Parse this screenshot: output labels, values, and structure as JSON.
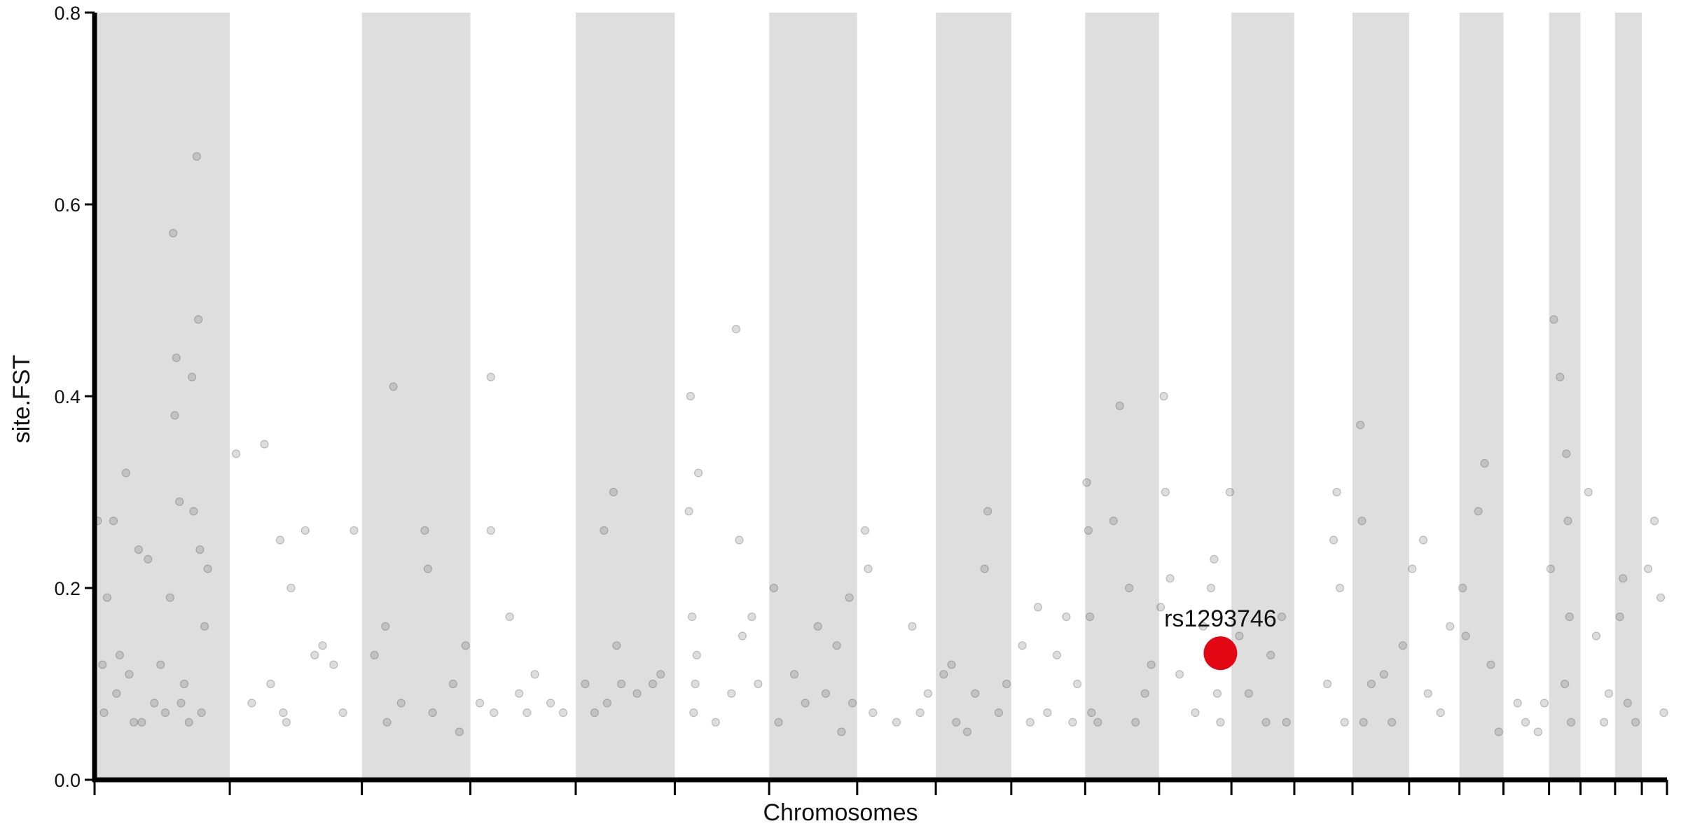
{
  "chart_data": {
    "type": "scatter",
    "x_label": "Chromosomes",
    "y_label": "site.FST",
    "xlim": [
      0,
      1000
    ],
    "ylim": [
      0,
      0.8
    ],
    "xticks": [
      0,
      86,
      170,
      239,
      306,
      369,
      429,
      485,
      535,
      583,
      630,
      677,
      723,
      763,
      800,
      836,
      868,
      896,
      925,
      945,
      967,
      984,
      1000
    ],
    "yticks": [
      {
        "value": 0,
        "label": "0.0"
      },
      0.2,
      0.4,
      0.6,
      0.8
    ],
    "band_color": "#dedede",
    "color": "#444444",
    "x": [
      2,
      5,
      6,
      8,
      12,
      14,
      20,
      22,
      28,
      30,
      34,
      38,
      42,
      50,
      51,
      52,
      54,
      55,
      57,
      62,
      63,
      65,
      66,
      67,
      68,
      70,
      72,
      60,
      45,
      48,
      25,
      16,
      90,
      100,
      108,
      118,
      120,
      122,
      125,
      134,
      140,
      145,
      152,
      158,
      165,
      112,
      178,
      185,
      186,
      190,
      195,
      210,
      212,
      215,
      228,
      236,
      232,
      252,
      252,
      254,
      264,
      270,
      275,
      280,
      290,
      298,
      245,
      312,
      318,
      324,
      326,
      330,
      332,
      335,
      345,
      355,
      360,
      378,
      379,
      380,
      381,
      382,
      384,
      383,
      395,
      405,
      408,
      410,
      412,
      418,
      422,
      432,
      435,
      445,
      452,
      460,
      465,
      472,
      475,
      480,
      482,
      490,
      492,
      495,
      510,
      520,
      525,
      530,
      540,
      545,
      548,
      555,
      560,
      566,
      568,
      575,
      580,
      590,
      595,
      600,
      606,
      612,
      618,
      622,
      625,
      631,
      632,
      633,
      634,
      638,
      648,
      652,
      658,
      662,
      668,
      672,
      678,
      680,
      681,
      684,
      690,
      700,
      705,
      712,
      714,
      716,
      722,
      710,
      728,
      734,
      745,
      748,
      755,
      758,
      788,
      790,
      792,
      795,
      784,
      805,
      806,
      807,
      812,
      820,
      825,
      832,
      838,
      845,
      848,
      856,
      862,
      870,
      872,
      880,
      884,
      888,
      893,
      905,
      910,
      918,
      922,
      928,
      926,
      932,
      936,
      937,
      938,
      939,
      935,
      950,
      955,
      960,
      963,
      972,
      970,
      975,
      980,
      988,
      992,
      996,
      998
    ],
    "values": [
      0.27,
      0.12,
      0.07,
      0.19,
      0.27,
      0.09,
      0.32,
      0.11,
      0.24,
      0.06,
      0.23,
      0.08,
      0.12,
      0.57,
      0.38,
      0.44,
      0.29,
      0.08,
      0.1,
      0.42,
      0.28,
      0.65,
      0.48,
      0.24,
      0.07,
      0.16,
      0.22,
      0.06,
      0.07,
      0.19,
      0.06,
      0.13,
      0.34,
      0.08,
      0.35,
      0.25,
      0.07,
      0.06,
      0.2,
      0.26,
      0.13,
      0.14,
      0.12,
      0.07,
      0.26,
      0.1,
      0.13,
      0.16,
      0.06,
      0.41,
      0.08,
      0.26,
      0.22,
      0.07,
      0.1,
      0.14,
      0.05,
      0.42,
      0.26,
      0.07,
      0.17,
      0.09,
      0.07,
      0.11,
      0.08,
      0.07,
      0.08,
      0.1,
      0.07,
      0.26,
      0.08,
      0.3,
      0.14,
      0.1,
      0.09,
      0.1,
      0.11,
      0.28,
      0.4,
      0.17,
      0.07,
      0.1,
      0.32,
      0.13,
      0.06,
      0.09,
      0.47,
      0.25,
      0.15,
      0.17,
      0.1,
      0.2,
      0.06,
      0.11,
      0.08,
      0.16,
      0.09,
      0.14,
      0.05,
      0.19,
      0.08,
      0.26,
      0.22,
      0.07,
      0.06,
      0.16,
      0.07,
      0.09,
      0.11,
      0.12,
      0.06,
      0.05,
      0.09,
      0.22,
      0.28,
      0.07,
      0.1,
      0.14,
      0.06,
      0.18,
      0.07,
      0.13,
      0.17,
      0.06,
      0.1,
      0.31,
      0.26,
      0.17,
      0.07,
      0.06,
      0.27,
      0.39,
      0.2,
      0.06,
      0.09,
      0.12,
      0.18,
      0.4,
      0.3,
      0.21,
      0.11,
      0.07,
      0.16,
      0.23,
      0.09,
      0.06,
      0.3,
      0.2,
      0.15,
      0.09,
      0.06,
      0.13,
      0.17,
      0.06,
      0.25,
      0.3,
      0.2,
      0.06,
      0.1,
      0.37,
      0.27,
      0.06,
      0.1,
      0.11,
      0.06,
      0.14,
      0.22,
      0.25,
      0.09,
      0.07,
      0.16,
      0.2,
      0.15,
      0.28,
      0.33,
      0.12,
      0.05,
      0.08,
      0.06,
      0.05,
      0.08,
      0.48,
      0.22,
      0.42,
      0.34,
      0.27,
      0.17,
      0.06,
      0.1,
      0.3,
      0.15,
      0.06,
      0.09,
      0.21,
      0.17,
      0.08,
      0.06,
      0.22,
      0.27,
      0.19,
      0.07
    ],
    "highlight": {
      "x": 716,
      "value": 0.132,
      "label": "rs1293746",
      "color": "#e30613"
    }
  }
}
